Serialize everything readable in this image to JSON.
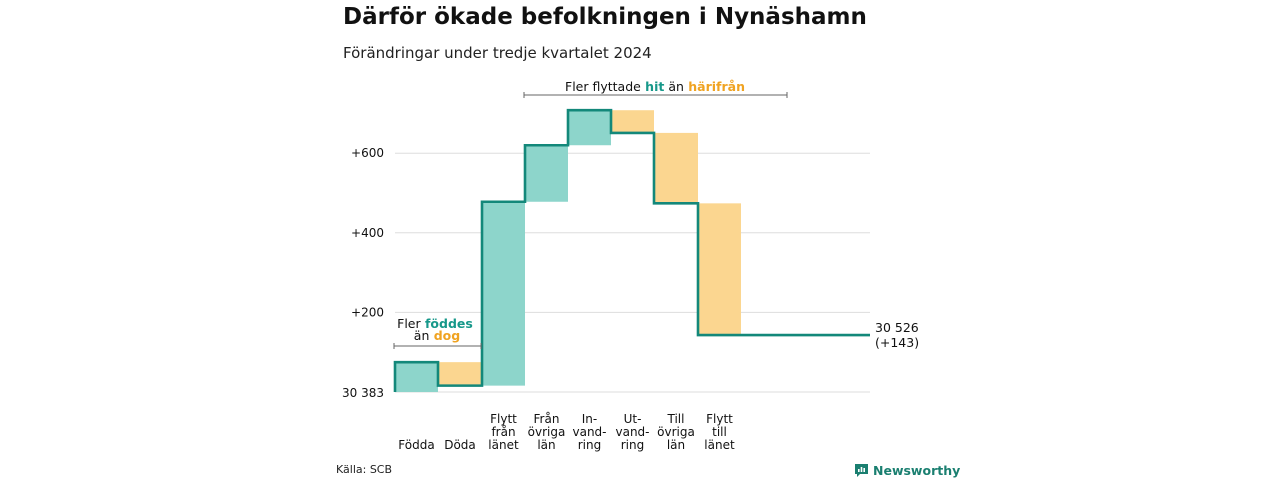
{
  "title": "Därför ökade befolkningen i Nynäshamn",
  "subtitle": "Förändringar under tredje kvartalet 2024",
  "source": "Källa: SCB",
  "brand": "Newsworthy",
  "colors": {
    "increase_fill": "#8dd5cb",
    "decrease_fill": "#fbd690",
    "line": "#13887a",
    "emph_teal": "#17988a",
    "emph_orange": "#f0a321",
    "grid": "#dddddd"
  },
  "chart_data": {
    "type": "waterfall",
    "start_value": 30383,
    "start_label": "30 383",
    "end_label": "30 526",
    "end_change_label": "(+143)",
    "ylim": [
      0,
      700
    ],
    "yticks": [
      {
        "value": 200,
        "label": "+200"
      },
      {
        "value": 400,
        "label": "+400"
      },
      {
        "value": 600,
        "label": "+600"
      }
    ],
    "steps": [
      {
        "category": "Födda",
        "label_lines": [
          "Födda"
        ],
        "change": 75
      },
      {
        "category": "Döda",
        "label_lines": [
          "Döda"
        ],
        "change": -59
      },
      {
        "category": "Flytt från länet",
        "label_lines": [
          "Flytt",
          "från",
          "länet"
        ],
        "change": 462
      },
      {
        "category": "Från övriga län",
        "label_lines": [
          "Från",
          "övriga",
          "län"
        ],
        "change": 142
      },
      {
        "category": "In-vandring",
        "label_lines": [
          "In-",
          "vand-",
          "ring"
        ],
        "change": 88
      },
      {
        "category": "Ut-vandring",
        "label_lines": [
          "Ut-",
          "vand-",
          "ring"
        ],
        "change": -57
      },
      {
        "category": "Till övriga län",
        "label_lines": [
          "Till",
          "övriga",
          "län"
        ],
        "change": -177
      },
      {
        "category": "Flytt till länet",
        "label_lines": [
          "Flytt",
          "till",
          "länet"
        ],
        "change": -331
      }
    ],
    "annotations": [
      {
        "id": "birth",
        "parts": [
          {
            "text": "Fler",
            "style": "plain"
          },
          {
            "text": "föddes",
            "style": "teal"
          }
        ],
        "parts2": [
          {
            "text": "än",
            "style": "plain"
          },
          {
            "text": "dog",
            "style": "orange"
          }
        ]
      },
      {
        "id": "migration",
        "parts": [
          {
            "text": "Fler flyttade",
            "style": "plain"
          },
          {
            "text": "hit",
            "style": "teal"
          },
          {
            "text": "än",
            "style": "plain"
          },
          {
            "text": "härifrån",
            "style": "orange"
          }
        ]
      }
    ]
  }
}
